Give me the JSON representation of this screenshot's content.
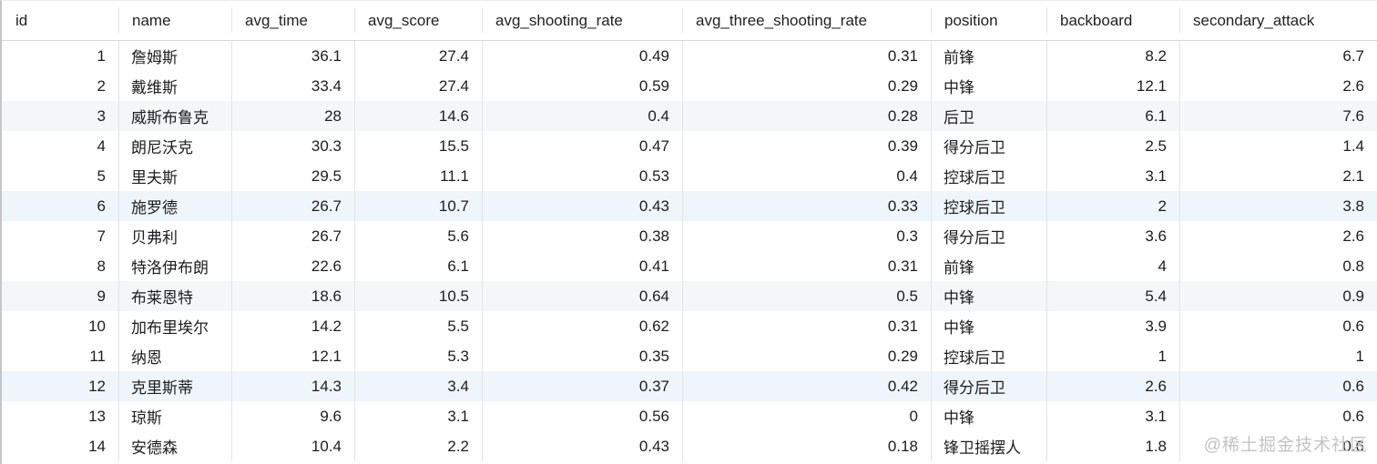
{
  "table": {
    "columns": [
      {
        "key": "id",
        "label": "id",
        "align": "right"
      },
      {
        "key": "name",
        "label": "name",
        "align": "left"
      },
      {
        "key": "avg_time",
        "label": "avg_time",
        "align": "right"
      },
      {
        "key": "avg_score",
        "label": "avg_score",
        "align": "right"
      },
      {
        "key": "avg_shooting_rate",
        "label": "avg_shooting_rate",
        "align": "right"
      },
      {
        "key": "avg_three_shooting_rate",
        "label": "avg_three_shooting_rate",
        "align": "right"
      },
      {
        "key": "position",
        "label": "position",
        "align": "left"
      },
      {
        "key": "backboard",
        "label": "backboard",
        "align": "right"
      },
      {
        "key": "secondary_attack",
        "label": "secondary_attack",
        "align": "right"
      }
    ],
    "rows": [
      [
        "1",
        "詹姆斯",
        "36.1",
        "27.4",
        "0.49",
        "0.31",
        "前锋",
        "8.2",
        "6.7"
      ],
      [
        "2",
        "戴维斯",
        "33.4",
        "27.4",
        "0.59",
        "0.29",
        "中锋",
        "12.1",
        "2.6"
      ],
      [
        "3",
        "威斯布鲁克",
        "28",
        "14.6",
        "0.4",
        "0.28",
        "后卫",
        "6.1",
        "7.6"
      ],
      [
        "4",
        "朗尼沃克",
        "30.3",
        "15.5",
        "0.47",
        "0.39",
        "得分后卫",
        "2.5",
        "1.4"
      ],
      [
        "5",
        "里夫斯",
        "29.5",
        "11.1",
        "0.53",
        "0.4",
        "控球后卫",
        "3.1",
        "2.1"
      ],
      [
        "6",
        "施罗德",
        "26.7",
        "10.7",
        "0.43",
        "0.33",
        "控球后卫",
        "2",
        "3.8"
      ],
      [
        "7",
        "贝弗利",
        "26.7",
        "5.6",
        "0.38",
        "0.3",
        "得分后卫",
        "3.6",
        "2.6"
      ],
      [
        "8",
        "特洛伊布朗",
        "22.6",
        "6.1",
        "0.41",
        "0.31",
        "前锋",
        "4",
        "0.8"
      ],
      [
        "9",
        "布莱恩特",
        "18.6",
        "10.5",
        "0.64",
        "0.5",
        "中锋",
        "5.4",
        "0.9"
      ],
      [
        "10",
        "加布里埃尔",
        "14.2",
        "5.5",
        "0.62",
        "0.31",
        "中锋",
        "3.9",
        "0.6"
      ],
      [
        "11",
        "纳恩",
        "12.1",
        "5.3",
        "0.35",
        "0.29",
        "控球后卫",
        "1",
        "1"
      ],
      [
        "12",
        "克里斯蒂",
        "14.3",
        "3.4",
        "0.37",
        "0.42",
        "得分后卫",
        "2.6",
        "0.6"
      ],
      [
        "13",
        "琼斯",
        "9.6",
        "3.1",
        "0.56",
        "0",
        "中锋",
        "3.1",
        "0.6"
      ],
      [
        "14",
        "安德森",
        "10.4",
        "2.2",
        "0.43",
        "0.18",
        "锋卫摇摆人",
        "1.8",
        "0.6"
      ]
    ],
    "highlighted_rows": {
      "gray": [
        "3",
        "9"
      ],
      "blue": [
        "6",
        "12"
      ]
    }
  },
  "watermark": {
    "text": "@稀土掘金技术社区"
  },
  "colors": {
    "stripe_gray": "#f4f6f8",
    "stripe_blue": "#eef5fb",
    "grid_line": "#e3e4e6",
    "header_line": "#d8d9db",
    "text": "#1d1d1f",
    "watermark": "#c3c3c5"
  }
}
